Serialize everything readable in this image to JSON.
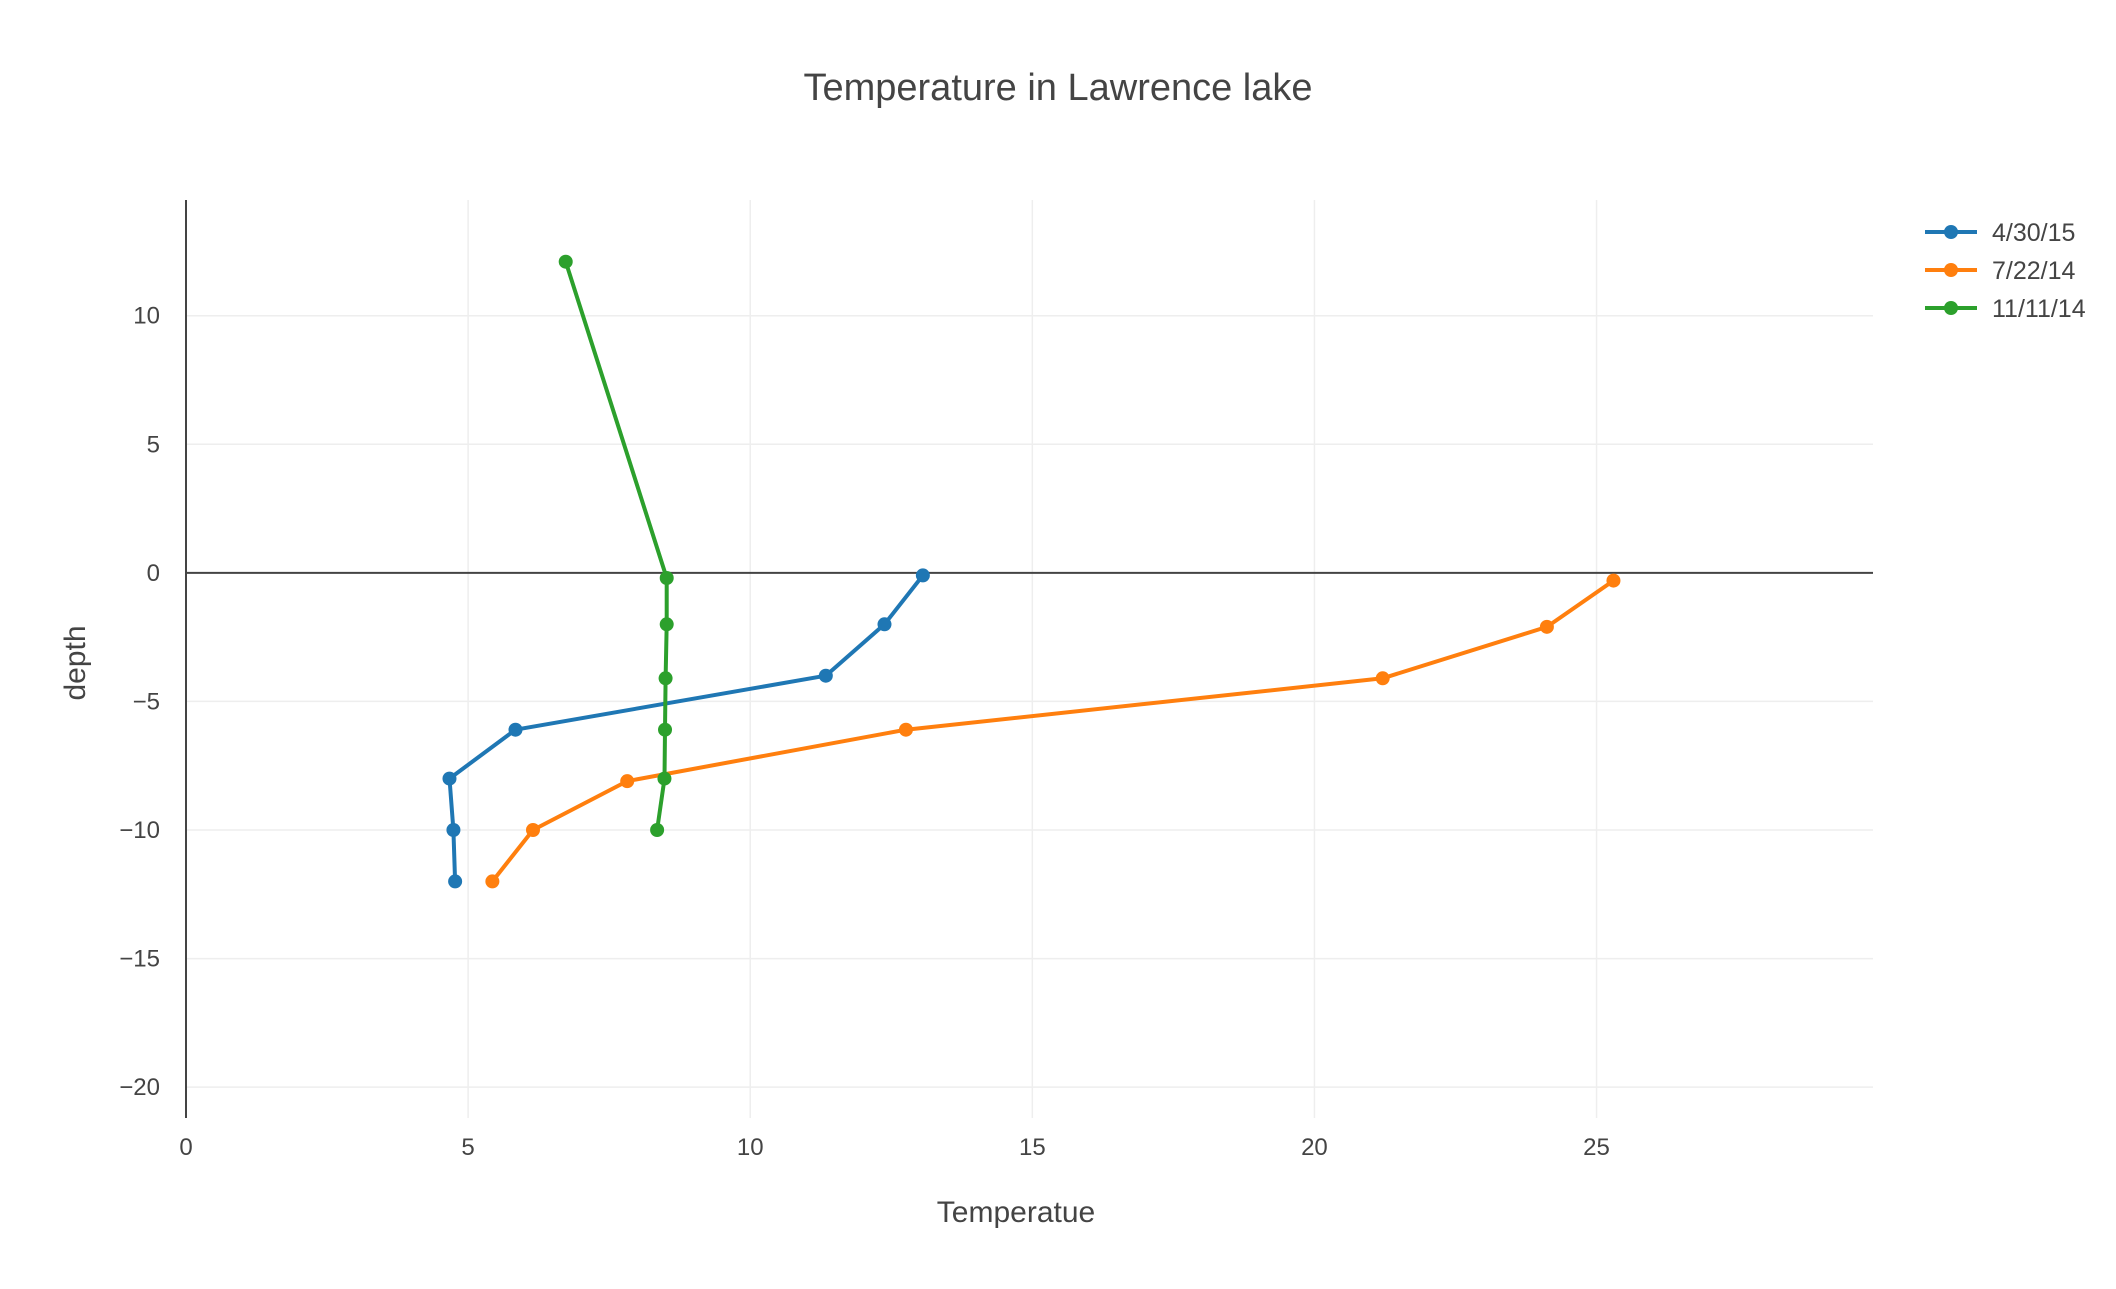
{
  "chart_data": {
    "type": "line",
    "mode": "lines+markers",
    "title": "Temperature in Lawrence lake",
    "xlabel": "Temperatue",
    "ylabel": "depth",
    "xlim": [
      0,
      29.9
    ],
    "ylim": [
      -21.2,
      14.5
    ],
    "xticks": [
      0,
      5,
      10,
      15,
      20,
      25
    ],
    "yticks": [
      10,
      5,
      0,
      -5,
      -10,
      -15,
      -20
    ],
    "xtick_labels": [
      "0",
      "5",
      "10",
      "15",
      "20",
      "25"
    ],
    "ytick_labels": [
      "10",
      "5",
      "0",
      "−5",
      "−10",
      "−15",
      "−20"
    ],
    "grid": true,
    "zeroline_y": true,
    "legend_position": "top-right",
    "series": [
      {
        "name": "4/30/15",
        "color": "#1f77b4",
        "x": [
          13.06,
          12.38,
          11.34,
          5.84,
          4.67,
          4.74,
          4.77
        ],
        "y": [
          -0.1,
          -2.0,
          -4.0,
          -6.1,
          -8.0,
          -10.0,
          -12.0
        ]
      },
      {
        "name": "7/22/14",
        "color": "#ff7f0e",
        "x": [
          25.3,
          24.12,
          21.21,
          12.76,
          7.82,
          6.15,
          5.43
        ],
        "y": [
          -0.3,
          -2.1,
          -4.1,
          -6.1,
          -8.1,
          -10.0,
          -12.0
        ]
      },
      {
        "name": "11/11/14",
        "color": "#2ca02c",
        "x": [
          6.73,
          8.52,
          8.52,
          8.5,
          8.49,
          8.48,
          8.35
        ],
        "y": [
          12.1,
          -0.2,
          -2.0,
          -4.1,
          -6.1,
          -8.0,
          -10.0
        ]
      }
    ]
  }
}
